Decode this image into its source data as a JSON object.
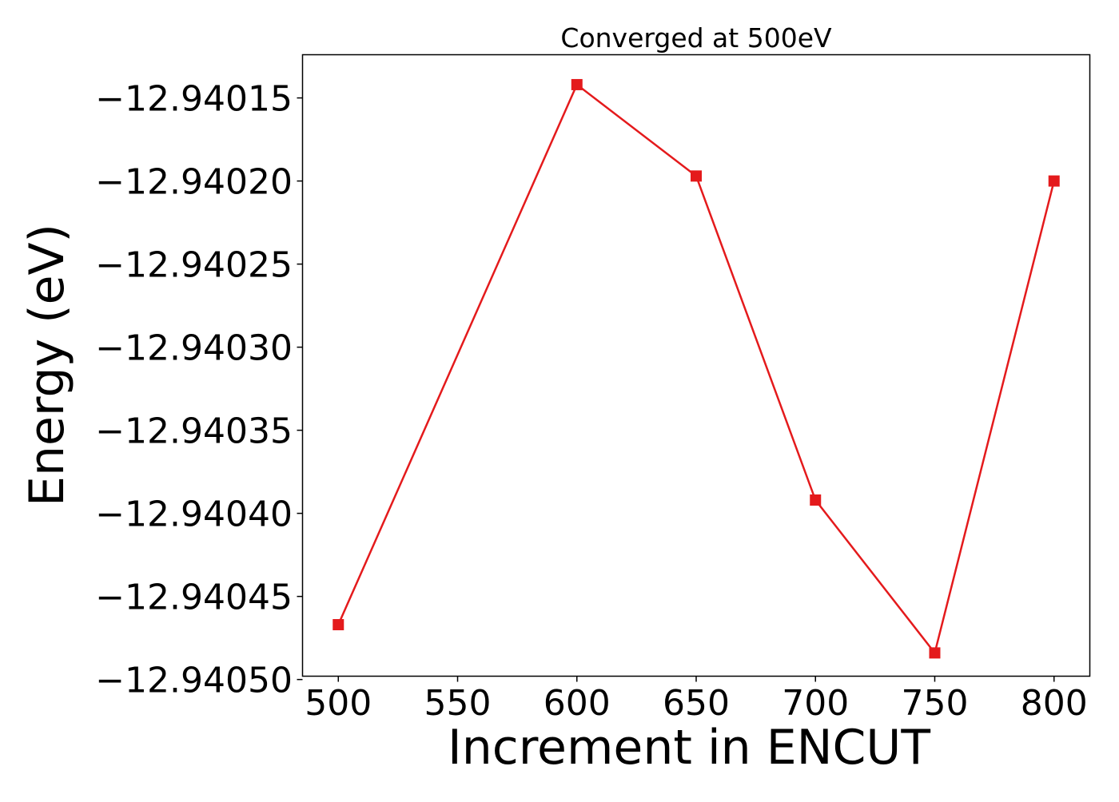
{
  "chart_data": {
    "type": "line",
    "title": "Converged at 500eV",
    "xlabel": "Increment in ENCUT",
    "ylabel": "Energy (eV)",
    "x": [
      500,
      600,
      650,
      700,
      750,
      800
    ],
    "series": [
      {
        "values": [
          -12.940467,
          -12.940142,
          -12.940197,
          -12.940392,
          -12.940484,
          -12.9402
        ],
        "color": "#e41a1c",
        "marker": "square"
      }
    ],
    "xticks": [
      500,
      550,
      600,
      650,
      700,
      750,
      800
    ],
    "xtick_labels": [
      "500",
      "550",
      "600",
      "650",
      "700",
      "750",
      "800"
    ],
    "yticks": [
      -12.94015,
      -12.9402,
      -12.94025,
      -12.9403,
      -12.94035,
      -12.9404,
      -12.94045,
      -12.9405
    ],
    "ytick_labels": [
      "−12.94015",
      "−12.94020",
      "−12.94025",
      "−12.94030",
      "−12.94035",
      "−12.94040",
      "−12.94045",
      "−12.94050"
    ],
    "xlim": [
      485,
      815
    ],
    "ylim": [
      -12.940498,
      -12.940124
    ],
    "grid": false,
    "legend": "none"
  }
}
